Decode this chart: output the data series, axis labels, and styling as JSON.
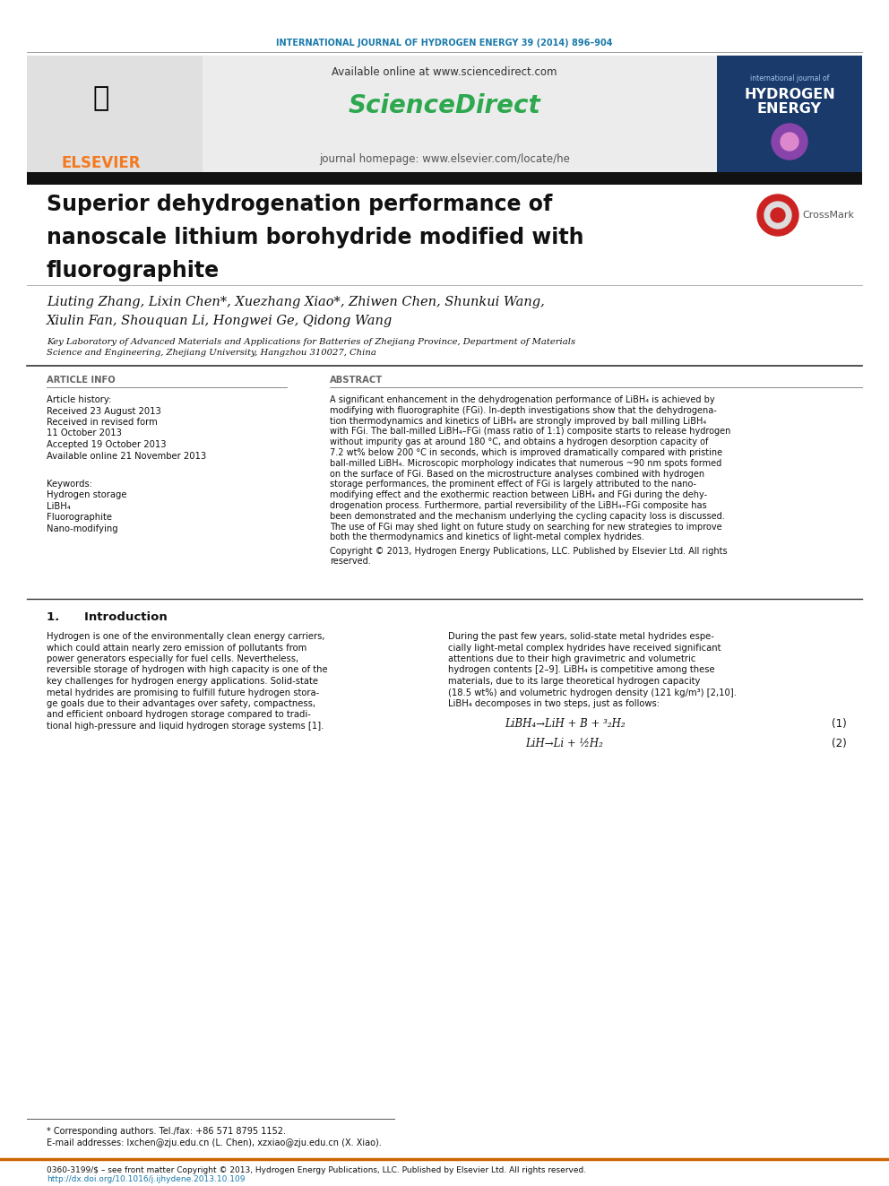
{
  "journal_header": "INTERNATIONAL JOURNAL OF HYDROGEN ENERGY 39 (2014) 896–904",
  "journal_header_color": "#1a7aab",
  "available_online": "Available online at www.sciencedirect.com",
  "sciencedirect_text": "ScienceDirect",
  "journal_homepage": "journal homepage: www.elsevier.com/locate/he",
  "elsevier_color": "#f47920",
  "header_bg": "#ececec",
  "dark_bar_color": "#1a1a1a",
  "article_title_line1": "Superior dehydrogenation performance of",
  "article_title_line2": "nanoscale lithium borohydride modified with",
  "article_title_line3": "fluorographite",
  "authors_line1": "Liuting Zhang, Lixin Chen*, Xuezhang Xiao*, Zhiwen Chen, Shunkui Wang,",
  "authors_line2": "Xiulin Fan, Shouquan Li, Hongwei Ge, Qidong Wang",
  "affiliation_line1": "Key Laboratory of Advanced Materials and Applications for Batteries of Zhejiang Province, Department of Materials",
  "affiliation_line2": "Science and Engineering, Zhejiang University, Hangzhou 310027, China",
  "article_info_label": "ARTICLE INFO",
  "abstract_label": "ABSTRACT",
  "article_history_label": "Article history:",
  "received_1": "Received 23 August 2013",
  "received_revised_1": "Received in revised form",
  "received_revised_2": "11 October 2013",
  "accepted": "Accepted 19 October 2013",
  "available_online2": "Available online 21 November 2013",
  "keywords_label": "Keywords:",
  "keywords": [
    "Hydrogen storage",
    "LiBH₄",
    "Fluorographite",
    "Nano-modifying"
  ],
  "abstract_lines": [
    "A significant enhancement in the dehydrogenation performance of LiBH₄ is achieved by",
    "modifying with fluorographite (FGi). In-depth investigations show that the dehydrogena-",
    "tion thermodynamics and kinetics of LiBH₄ are strongly improved by ball milling LiBH₄",
    "with FGi. The ball-milled LiBH₄–FGi (mass ratio of 1:1) composite starts to release hydrogen",
    "without impurity gas at around 180 °C, and obtains a hydrogen desorption capacity of",
    "7.2 wt% below 200 °C in seconds, which is improved dramatically compared with pristine",
    "ball-milled LiBH₄. Microscopic morphology indicates that numerous ~90 nm spots formed",
    "on the surface of FGi. Based on the microstructure analyses combined with hydrogen",
    "storage performances, the prominent effect of FGi is largely attributed to the nano-",
    "modifying effect and the exothermic reaction between LiBH₄ and FGi during the dehy-",
    "drogenation process. Furthermore, partial reversibility of the LiBH₄–FGi composite has",
    "been demonstrated and the mechanism underlying the cycling capacity loss is discussed.",
    "The use of FGi may shed light on future study on searching for new strategies to improve",
    "both the thermodynamics and kinetics of light-metal complex hydrides."
  ],
  "copyright_line1": "Copyright © 2013, Hydrogen Energy Publications, LLC. Published by Elsevier Ltd. All rights",
  "copyright_line2": "reserved.",
  "intro_label": "1.      Introduction",
  "intro_left_lines": [
    "Hydrogen is one of the environmentally clean energy carriers,",
    "which could attain nearly zero emission of pollutants from",
    "power generators especially for fuel cells. Nevertheless,",
    "reversible storage of hydrogen with high capacity is one of the",
    "key challenges for hydrogen energy applications. Solid-state",
    "metal hydrides are promising to fulfill future hydrogen stora-",
    "ge goals due to their advantages over safety, compactness,",
    "and efficient onboard hydrogen storage compared to tradi-",
    "tional high-pressure and liquid hydrogen storage systems [1]."
  ],
  "intro_right_lines": [
    "During the past few years, solid-state metal hydrides espe-",
    "cially light-metal complex hydrides have received significant",
    "attentions due to their high gravimetric and volumetric",
    "hydrogen contents [2–9]. LiBH₄ is competitive among these",
    "materials, due to its large theoretical hydrogen capacity",
    "(18.5 wt%) and volumetric hydrogen density (121 kg/m³) [2,10].",
    "LiBH₄ decomposes in two steps, just as follows:"
  ],
  "eq1": "LiBH₄→LiH + B + ³₂H₂",
  "eq2": "LiH→Li + ½H₂",
  "eq1_num": "(1)",
  "eq2_num": "(2)",
  "footnote_star": "* Corresponding authors. Tel./fax: +86 571 8795 1152.",
  "footnote_email": "E-mail addresses: lxchen@zju.edu.cn (L. Chen), xzxiao@zju.edu.cn (X. Xiao).",
  "bottom_line1": "0360-3199/$ – see front matter Copyright © 2013, Hydrogen Energy Publications, LLC. Published by Elsevier Ltd. All rights reserved.",
  "bottom_line2": "http://dx.doi.org/10.1016/j.ijhydene.2013.10.109",
  "bottom_url_color": "#1a7aab",
  "bg_color": "#ffffff",
  "text_color": "#000000",
  "cover_bg": "#1a3a6b",
  "cover_text_color": "#ffffff"
}
